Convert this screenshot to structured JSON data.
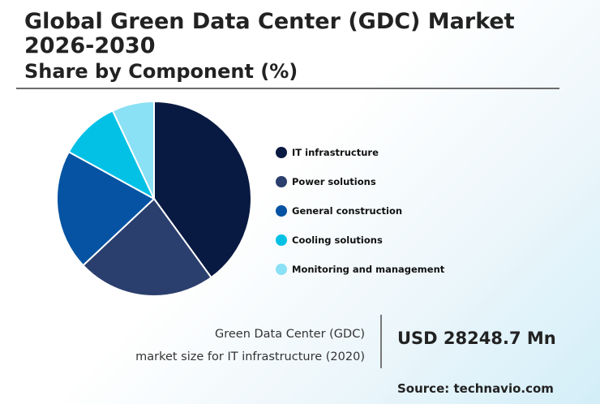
{
  "header": {
    "title": "Global Green Data Center (GDC) Market 2026-2030",
    "subtitle": "Share by Component (%)"
  },
  "chart_data": {
    "type": "pie",
    "categories": [
      "IT infrastructure",
      "Power solutions",
      "General construction",
      "Cooling solutions",
      "Monitoring and management"
    ],
    "values": [
      40,
      23,
      20,
      10,
      7
    ],
    "colors": [
      "#091a42",
      "#2b3f6e",
      "#0553a2",
      "#02c1e5",
      "#8ae0f4"
    ],
    "legend_position": "right"
  },
  "summary": {
    "caption_line1": "Green Data Center (GDC)",
    "caption_line2": "market size for IT infrastructure (2020)",
    "value": "USD 28248.7 Mn"
  },
  "source": "Source: technavio.com"
}
